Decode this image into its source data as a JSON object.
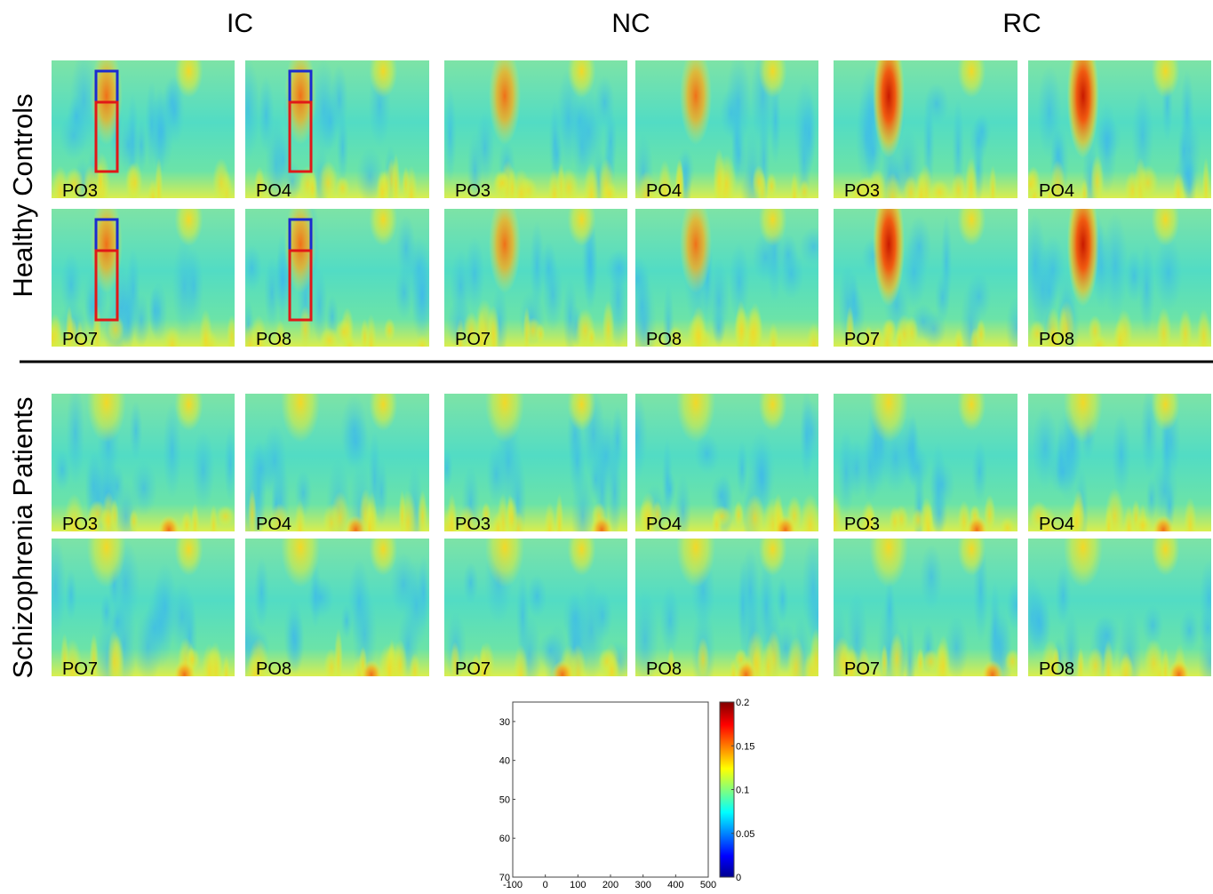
{
  "column_titles": [
    "IC",
    "NC",
    "RC"
  ],
  "groups": [
    {
      "label": "Healthy Controls",
      "rows": [
        [
          "PO3",
          "PO4",
          "PO3",
          "PO4",
          "PO3",
          "PO4"
        ],
        [
          "PO7",
          "PO8",
          "PO7",
          "PO8",
          "PO7",
          "PO8"
        ]
      ]
    },
    {
      "label": "Schizophrenia Patients",
      "rows": [
        [
          "PO3",
          "PO4",
          "PO3",
          "PO4",
          "PO3",
          "PO4"
        ],
        [
          "PO7",
          "PO8",
          "PO7",
          "PO8",
          "PO7",
          "PO8"
        ]
      ]
    }
  ],
  "axes_key": {
    "xlim": [
      -100,
      500
    ],
    "xticks": [
      -100,
      0,
      100,
      200,
      300,
      400,
      500
    ],
    "ylim": [
      25,
      70
    ],
    "yticks": [
      30,
      40,
      50,
      60,
      70
    ],
    "colorbar": {
      "lim": [
        0,
        0.2
      ],
      "ticks": [
        0,
        0.05,
        0.1,
        0.15,
        0.2
      ]
    }
  }
}
